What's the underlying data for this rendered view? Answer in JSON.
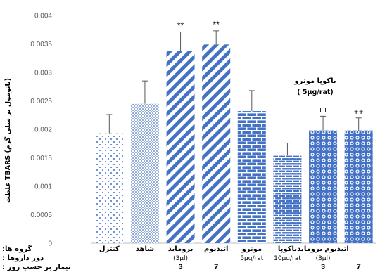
{
  "chart_data": {
    "type": "bar",
    "title": "",
    "ylabel": "غلظت TBARS (نانومول بر میلی گرم)",
    "ylim": [
      0,
      0.004
    ],
    "yticks": [
      "0",
      "0.0005",
      "0.001",
      "0.0015",
      "0.002",
      "0.0025",
      "0.003",
      "0.0035",
      "0.004"
    ],
    "categories": [
      "کنترل",
      "شاهد",
      "برومايد",
      "اتيديوم",
      "مونرو",
      "باكوپا",
      "اتيديوم برومايد",
      ""
    ],
    "values": [
      0.00193,
      0.00245,
      0.00337,
      0.00349,
      0.00232,
      0.00154,
      0.00198,
      0.00198
    ],
    "errors": [
      0.00033,
      0.0004,
      0.00034,
      0.00024,
      0.00036,
      0.00022,
      0.00025,
      0.00022
    ],
    "significance": [
      "",
      "",
      "**",
      "**",
      "",
      "",
      "++",
      "++"
    ],
    "patterns": [
      "dots-sparse",
      "dots-dense",
      "diag-wide",
      "diag-wide",
      "brick-large",
      "brick-small",
      "circles",
      "circles"
    ],
    "dose_labels": [
      "",
      "",
      "(3µl)",
      "",
      "5µg/rat",
      "10µg/rat",
      "(3µl)",
      ""
    ],
    "day_labels": [
      "",
      "",
      "3",
      "7",
      "",
      "",
      "3",
      "7"
    ],
    "annotation": {
      "line1": "باكوپا مونرو",
      "line2": "( 5µg/rat)"
    },
    "row_labels": [
      ":گروه ها",
      ": دوز داروها",
      ": تیمار بر حسب روز"
    ],
    "colors": {
      "bar": "#4472c4",
      "axis": "#bfbfbf",
      "tick": "#595959"
    }
  }
}
